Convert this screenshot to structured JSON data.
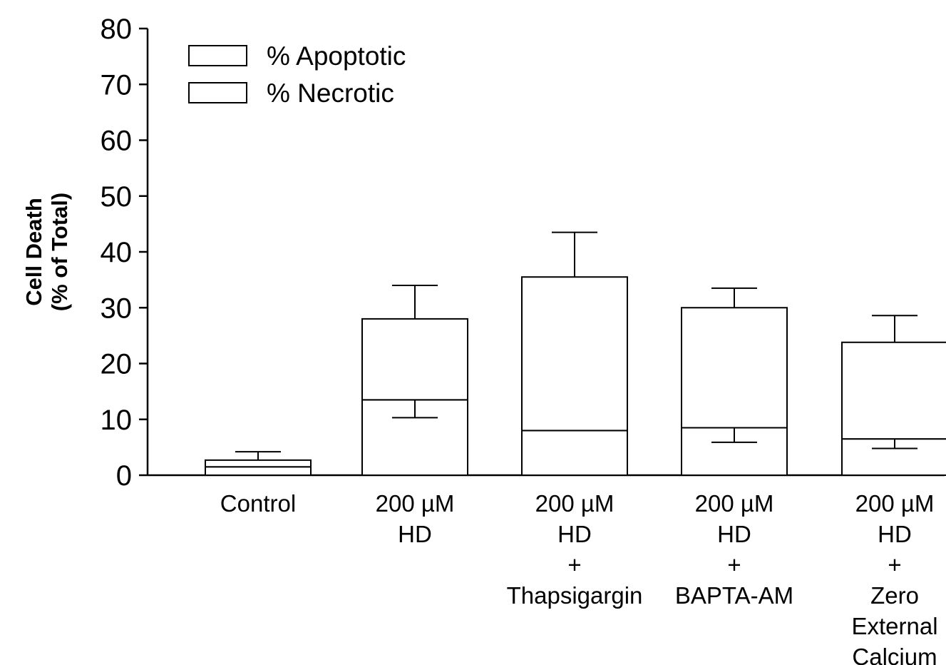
{
  "chart_data": {
    "type": "bar",
    "stacked": true,
    "title": "",
    "xlabel": "",
    "ylabel": [
      "Cell Death",
      "(% of Total)"
    ],
    "ylim": [
      0,
      80
    ],
    "yticks": [
      "0",
      "10",
      "20",
      "30",
      "40",
      "50",
      "60",
      "70",
      "80"
    ],
    "grid": false,
    "legend_position": "top-left",
    "categories": [
      [
        "Control"
      ],
      [
        "200 µM",
        "HD"
      ],
      [
        "200 µM",
        "HD",
        "+",
        "Thapsigargin"
      ],
      [
        "200 µM",
        "HD",
        "+",
        "BAPTA-AM"
      ],
      [
        "200 µM",
        "HD",
        "+",
        "Zero",
        "External",
        "Calcium"
      ]
    ],
    "series": [
      {
        "name": "% Necrotic",
        "values": [
          1.5,
          13.5,
          8,
          8.5,
          6.5
        ],
        "error_low": [
          null,
          3.2,
          null,
          2.6,
          1.7
        ],
        "fill": "#ffffff"
      },
      {
        "name": "% Apoptotic",
        "values": [
          1.2,
          14.5,
          27.5,
          21.5,
          17.3
        ],
        "error_high": [
          1.5,
          6,
          8,
          3.5,
          4.8
        ],
        "fill": "#ffffff"
      }
    ],
    "legend_order": [
      "% Apoptotic",
      "% Necrotic"
    ],
    "colors": {
      "bar_stroke": "#000000",
      "axis": "#000000",
      "background": "#ffffff"
    }
  }
}
